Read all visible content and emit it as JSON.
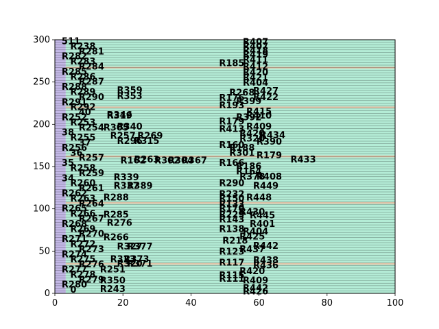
{
  "chart_data": {
    "type": "bar",
    "orientation": "horizontal",
    "xlim": [
      0,
      100
    ],
    "ylim": [
      0,
      300
    ],
    "x_ticks": [
      "0",
      "20",
      "40",
      "60",
      "80",
      "100"
    ],
    "y_ticks": [
      "0",
      "50",
      "100",
      "150",
      "200",
      "250",
      "300"
    ],
    "grid": false,
    "colors": {
      "lavender": "#c3b8e6",
      "mint": "#b4ecd6",
      "sand": "#e2c3a8",
      "edge": "#000000"
    },
    "range_bands": [
      {
        "y0": 0,
        "y1": 300,
        "x0": 0,
        "x1": 3.2,
        "color": "lavender"
      },
      {
        "y0": 0,
        "y1": 300,
        "x0": 3.2,
        "x1": 100,
        "color": "mint"
      },
      {
        "y0": 34,
        "y1": 36,
        "x0": 3.2,
        "x1": 100,
        "color": "sand"
      },
      {
        "y0": 106,
        "y1": 108,
        "x0": 3.2,
        "x1": 100,
        "color": "sand"
      },
      {
        "y0": 161,
        "y1": 163,
        "x0": 3.2,
        "x1": 100,
        "color": "sand"
      },
      {
        "y0": 219,
        "y1": 221,
        "x0": 3.2,
        "x1": 100,
        "color": "sand"
      },
      {
        "y0": 266,
        "y1": 268,
        "x0": 3.2,
        "x1": 100,
        "color": "sand"
      }
    ],
    "labels": [
      {
        "text": "R407",
        "x": 59,
        "y": 297
      },
      {
        "text": "R407",
        "x": 59,
        "y": 292
      },
      {
        "text": "R418",
        "x": 59,
        "y": 287
      },
      {
        "text": "R419",
        "x": 59,
        "y": 282
      },
      {
        "text": "R411",
        "x": 59,
        "y": 276
      },
      {
        "text": "R185",
        "x": 52,
        "y": 272
      },
      {
        "text": "R412",
        "x": 59,
        "y": 268
      },
      {
        "text": "R420",
        "x": 59,
        "y": 261
      },
      {
        "text": "R421",
        "x": 59,
        "y": 255
      },
      {
        "text": "R404",
        "x": 59,
        "y": 249
      },
      {
        "text": "R268",
        "x": 55,
        "y": 237
      },
      {
        "text": "R427",
        "x": 62,
        "y": 239
      },
      {
        "text": "R422",
        "x": 62,
        "y": 232
      },
      {
        "text": "R176",
        "x": 52,
        "y": 231
      },
      {
        "text": "R399",
        "x": 57,
        "y": 227
      },
      {
        "text": "R193",
        "x": 52,
        "y": 222
      },
      {
        "text": "R415",
        "x": 60,
        "y": 215
      },
      {
        "text": "R392",
        "x": 57,
        "y": 208
      },
      {
        "text": "R410",
        "x": 60,
        "y": 210
      },
      {
        "text": "R179",
        "x": 52,
        "y": 203
      },
      {
        "text": "R409",
        "x": 60,
        "y": 197
      },
      {
        "text": "R413",
        "x": 52,
        "y": 194
      },
      {
        "text": "R420",
        "x": 58,
        "y": 189
      },
      {
        "text": "R434",
        "x": 64,
        "y": 187
      },
      {
        "text": "R320",
        "x": 58,
        "y": 183
      },
      {
        "text": "R390",
        "x": 63,
        "y": 179
      },
      {
        "text": "R160",
        "x": 52,
        "y": 175
      },
      {
        "text": "R188",
        "x": 55,
        "y": 172
      },
      {
        "text": "R301",
        "x": 55,
        "y": 166
      },
      {
        "text": "R179",
        "x": 63,
        "y": 163
      },
      {
        "text": "R433",
        "x": 73,
        "y": 158
      },
      {
        "text": "R166",
        "x": 52,
        "y": 154
      },
      {
        "text": "R186",
        "x": 57,
        "y": 150
      },
      {
        "text": "R164",
        "x": 57,
        "y": 144
      },
      {
        "text": "R378",
        "x": 58,
        "y": 138
      },
      {
        "text": "R408",
        "x": 63,
        "y": 138
      },
      {
        "text": "R290",
        "x": 52,
        "y": 130
      },
      {
        "text": "R449",
        "x": 62,
        "y": 127
      },
      {
        "text": "R232",
        "x": 52,
        "y": 117
      },
      {
        "text": "R448",
        "x": 60,
        "y": 113
      },
      {
        "text": "R150",
        "x": 52,
        "y": 112
      },
      {
        "text": "R133",
        "x": 52,
        "y": 105
      },
      {
        "text": "R170",
        "x": 52,
        "y": 100
      },
      {
        "text": "R430",
        "x": 58,
        "y": 96
      },
      {
        "text": "R229",
        "x": 52,
        "y": 93
      },
      {
        "text": "R445",
        "x": 61,
        "y": 92
      },
      {
        "text": "R143",
        "x": 52,
        "y": 87
      },
      {
        "text": "R401",
        "x": 61,
        "y": 82
      },
      {
        "text": "R138",
        "x": 52,
        "y": 76
      },
      {
        "text": "R404",
        "x": 59,
        "y": 73
      },
      {
        "text": "R425",
        "x": 58,
        "y": 67
      },
      {
        "text": "R218",
        "x": 53,
        "y": 62
      },
      {
        "text": "R442",
        "x": 62,
        "y": 56
      },
      {
        "text": "R123",
        "x": 52,
        "y": 49
      },
      {
        "text": "R437",
        "x": 58,
        "y": 52
      },
      {
        "text": "R438",
        "x": 62,
        "y": 39
      },
      {
        "text": "R117",
        "x": 52,
        "y": 36
      },
      {
        "text": "R436",
        "x": 62,
        "y": 33
      },
      {
        "text": "R420",
        "x": 58,
        "y": 26
      },
      {
        "text": "R115",
        "x": 52,
        "y": 21
      },
      {
        "text": "R111",
        "x": 52,
        "y": 17
      },
      {
        "text": "R409",
        "x": 59,
        "y": 15
      },
      {
        "text": "R442",
        "x": 59,
        "y": 6
      },
      {
        "text": "R426",
        "x": 59,
        "y": 2
      },
      {
        "text": "R319",
        "x": 19,
        "y": 210
      },
      {
        "text": "R346",
        "x": 19,
        "y": 211
      },
      {
        "text": "R305",
        "x": 18,
        "y": 196
      },
      {
        "text": "R340",
        "x": 22,
        "y": 197
      },
      {
        "text": "R257",
        "x": 20,
        "y": 186
      },
      {
        "text": "R269",
        "x": 28,
        "y": 186
      },
      {
        "text": "R296",
        "x": 22,
        "y": 180
      },
      {
        "text": "R315",
        "x": 27,
        "y": 180
      },
      {
        "text": "R162",
        "x": 23,
        "y": 157
      },
      {
        "text": "R263",
        "x": 27,
        "y": 158
      },
      {
        "text": "R302",
        "x": 33,
        "y": 157
      },
      {
        "text": "R304",
        "x": 37,
        "y": 157
      },
      {
        "text": "R367",
        "x": 41,
        "y": 157
      },
      {
        "text": "R339",
        "x": 21,
        "y": 137
      },
      {
        "text": "R337",
        "x": 21,
        "y": 127
      },
      {
        "text": "R389",
        "x": 25,
        "y": 127
      },
      {
        "text": "R288",
        "x": 18,
        "y": 113
      },
      {
        "text": "R285",
        "x": 18,
        "y": 93
      },
      {
        "text": "R276",
        "x": 19,
        "y": 83
      },
      {
        "text": "R266",
        "x": 18,
        "y": 66
      },
      {
        "text": "R327",
        "x": 22,
        "y": 55
      },
      {
        "text": "R377",
        "x": 25,
        "y": 55
      },
      {
        "text": "R323",
        "x": 20,
        "y": 40
      },
      {
        "text": "R373",
        "x": 24,
        "y": 40
      },
      {
        "text": "R320",
        "x": 22,
        "y": 35
      },
      {
        "text": "R371",
        "x": 25,
        "y": 35
      },
      {
        "text": "R251",
        "x": 17,
        "y": 28
      },
      {
        "text": "R350",
        "x": 17,
        "y": 15
      },
      {
        "text": "R243",
        "x": 17,
        "y": 5
      },
      {
        "text": "R353",
        "x": 22,
        "y": 233
      },
      {
        "text": "R359",
        "x": 22,
        "y": 240
      }
    ],
    "left_labels": [
      "511",
      "R238",
      "R281",
      "R282",
      "R283",
      "R284",
      "R285",
      "R286",
      "R287",
      "R288",
      "R289",
      "R290",
      "R291",
      "R292",
      "40",
      "R252",
      "R253",
      "R254",
      "38",
      "R255",
      "37",
      "R256",
      "36",
      "R257",
      "35",
      "R258",
      "R259",
      "34",
      "R260",
      "R261",
      "R262",
      "R263",
      "R264",
      "R265",
      "R266",
      "R267",
      "R268",
      "R269",
      "R270",
      "R271",
      "R272",
      "R273",
      "R274",
      "R275",
      "R276",
      "R277",
      "R278",
      "R279",
      "R280",
      "0"
    ]
  }
}
